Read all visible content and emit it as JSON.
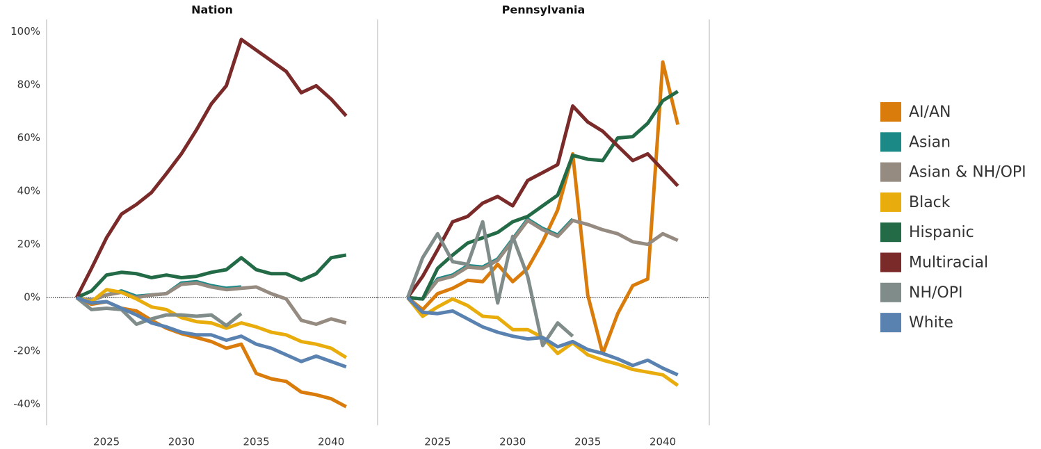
{
  "chart_data": [
    {
      "type": "line",
      "title": "Nation",
      "x": [
        2023,
        2024,
        2025,
        2026,
        2027,
        2028,
        2029,
        2030,
        2031,
        2032,
        2033,
        2034,
        2035,
        2036,
        2037,
        2038,
        2039,
        2040,
        2041
      ],
      "xlim": [
        2021,
        2043.1
      ],
      "xticks": [
        2025,
        2030,
        2035,
        2040
      ],
      "ylim": [
        -48,
        104
      ],
      "yticks": [
        {
          "value": -40,
          "label": "-40%"
        },
        {
          "value": -20,
          "label": "-20%"
        },
        {
          "value": 0,
          "label": "0%"
        },
        {
          "value": 20,
          "label": "20%"
        },
        {
          "value": 40,
          "label": "40%"
        },
        {
          "value": 60,
          "label": "60%"
        },
        {
          "value": 80,
          "label": "80%"
        },
        {
          "value": 100,
          "label": "100%"
        }
      ],
      "series": [
        {
          "name": "AI/AN",
          "color": "#d97c0c",
          "values": [
            0,
            -2.5,
            -1.5,
            -4,
            -5,
            -8.5,
            -11.5,
            -13.5,
            -15,
            -16.5,
            -19,
            -17.5,
            -28.5,
            -30.5,
            -31.5,
            -35.5,
            -36.5,
            -38,
            -41
          ]
        },
        {
          "name": "Asian",
          "color": "#1b8a87",
          "values": [
            0,
            -1,
            1,
            2.5,
            0.5,
            1,
            1.5,
            5.5,
            6,
            4.5,
            3.5,
            4,
            null,
            null,
            null,
            null,
            null,
            null,
            null
          ]
        },
        {
          "name": "Asian & NH/OPI",
          "color": "#968b80",
          "values": [
            0,
            -1,
            1,
            2,
            0,
            1,
            1.5,
            5,
            5.5,
            4,
            3,
            3.5,
            4,
            1.5,
            -0.5,
            -8.5,
            -10,
            -8,
            -9.5
          ]
        },
        {
          "name": "Black",
          "color": "#e8ac0c",
          "values": [
            0,
            -1.5,
            3,
            2,
            -0.5,
            -3.5,
            -4.5,
            -7.5,
            -9,
            -9.5,
            -11.5,
            -9.5,
            -11,
            -13,
            -14,
            -16.5,
            -17.5,
            -19,
            -22.5
          ]
        },
        {
          "name": "Hispanic",
          "color": "#236b47",
          "values": [
            0,
            2.5,
            8.5,
            9.5,
            9,
            7.5,
            8.5,
            7.5,
            8,
            9.5,
            10.5,
            15,
            10.5,
            9,
            9,
            6.5,
            9,
            15,
            16
          ]
        },
        {
          "name": "Multiracial",
          "color": "#7a2a29",
          "values": [
            0,
            11,
            22.5,
            31.4,
            35,
            39.5,
            46.6,
            54,
            63,
            72.8,
            79.6,
            97,
            93,
            89,
            85,
            77,
            79.6,
            74.6,
            68.3
          ]
        },
        {
          "name": "NH/OPI",
          "color": "#7f8c8a",
          "values": [
            0,
            -4.5,
            -4,
            -4.5,
            -10,
            -8,
            -6.5,
            -6.5,
            -7,
            -6.5,
            -10.5,
            -6,
            null,
            null,
            null,
            null,
            null,
            null,
            null
          ]
        },
        {
          "name": "White",
          "color": "#5a82b0",
          "values": [
            0,
            -2,
            -1.5,
            -4,
            -6.5,
            -9.5,
            -11,
            -13,
            -14,
            -14,
            -16,
            -14.5,
            -17.5,
            -19,
            -21.5,
            -24,
            -22,
            -24,
            -26
          ]
        }
      ]
    },
    {
      "type": "line",
      "title": "Pennsylvania",
      "x": [
        2023,
        2024,
        2025,
        2026,
        2027,
        2028,
        2029,
        2030,
        2031,
        2032,
        2033,
        2034,
        2035,
        2036,
        2037,
        2038,
        2039,
        2040,
        2041
      ],
      "xlim": [
        2021,
        2043.1
      ],
      "xticks": [
        2025,
        2030,
        2035,
        2040
      ],
      "ylim": [
        -48,
        104
      ],
      "series": [
        {
          "name": "AI/AN",
          "color": "#d97c0c",
          "values": [
            0,
            -4.5,
            1.5,
            3.5,
            6.5,
            6,
            12.5,
            6,
            11,
            21,
            33,
            54,
            1,
            -21,
            -6,
            4.5,
            7,
            88.5,
            65
          ]
        },
        {
          "name": "Asian",
          "color": "#1b8a87",
          "values": [
            0,
            -0.5,
            7,
            8.5,
            12,
            11.5,
            14.5,
            22,
            29.5,
            26,
            23.5,
            29.5,
            null,
            null,
            null,
            null,
            null,
            null,
            null
          ]
        },
        {
          "name": "Asian & NH/OPI",
          "color": "#968b80",
          "values": [
            0,
            -0.5,
            6.5,
            8,
            11.5,
            11,
            14,
            21.5,
            29,
            25.5,
            23,
            29,
            27.5,
            25.5,
            24,
            21,
            20,
            24,
            21.5
          ]
        },
        {
          "name": "Black",
          "color": "#e8ac0c",
          "values": [
            0,
            -7,
            -3.5,
            -0.5,
            -3,
            -7,
            -7.5,
            -12,
            -12,
            -15,
            -21,
            -17,
            -21.5,
            -23.5,
            -25,
            -27,
            -28,
            -29,
            -33
          ]
        },
        {
          "name": "Hispanic",
          "color": "#236b47",
          "values": [
            0,
            -0.5,
            11,
            16,
            20.5,
            22.5,
            24.5,
            28.5,
            30.5,
            34.5,
            38.5,
            53.5,
            52,
            51.5,
            60,
            60.5,
            65.5,
            74,
            77.5
          ]
        },
        {
          "name": "Multiracial",
          "color": "#7a2a29",
          "values": [
            0,
            8,
            18,
            28.5,
            30.5,
            35.5,
            38,
            34.5,
            44,
            47,
            50,
            72,
            66,
            62.5,
            57,
            51.5,
            54,
            48,
            42
          ]
        },
        {
          "name": "NH/OPI",
          "color": "#7f8c8a",
          "values": [
            0,
            15,
            24,
            13.5,
            12.5,
            28.5,
            -2,
            23,
            8,
            -18,
            -9.5,
            -14.5,
            null,
            null,
            null,
            null,
            null,
            null,
            null
          ]
        },
        {
          "name": "White",
          "color": "#5a82b0",
          "values": [
            0,
            -5.5,
            -6,
            -5,
            -8,
            -11,
            -13,
            -14.5,
            -15.5,
            -15,
            -18.5,
            -16.5,
            -19.5,
            -21,
            -23,
            -25.5,
            -23.5,
            -26.5,
            -29
          ]
        }
      ]
    }
  ]
}
